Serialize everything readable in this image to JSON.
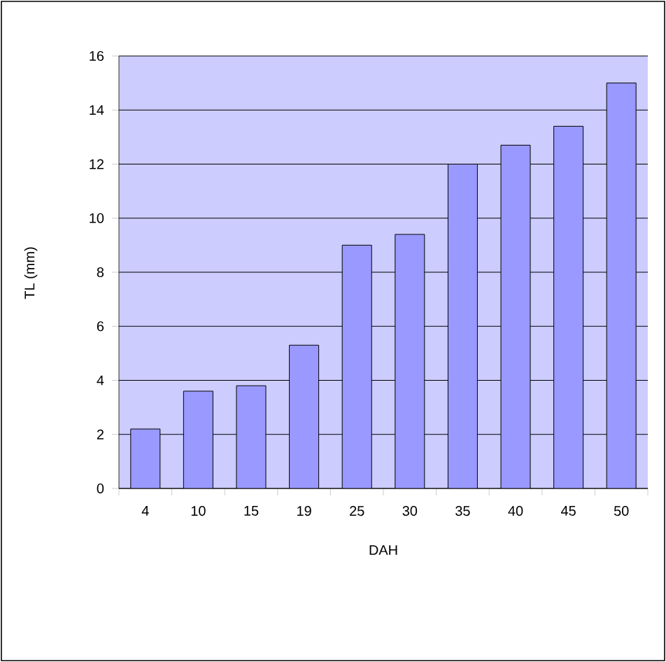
{
  "chart_data": {
    "type": "bar",
    "xlabel": "DAH",
    "ylabel": "TL (mm)",
    "categories": [
      "4",
      "10",
      "15",
      "19",
      "25",
      "30",
      "35",
      "40",
      "45",
      "50"
    ],
    "values": [
      2.2,
      3.6,
      3.8,
      5.3,
      9.0,
      9.4,
      12.0,
      12.7,
      13.4,
      15.0
    ],
    "color": "#9999ff",
    "ylim": [
      0,
      16
    ],
    "yticks": [
      0,
      2,
      4,
      6,
      8,
      10,
      12,
      14,
      16
    ],
    "grid": "y"
  }
}
